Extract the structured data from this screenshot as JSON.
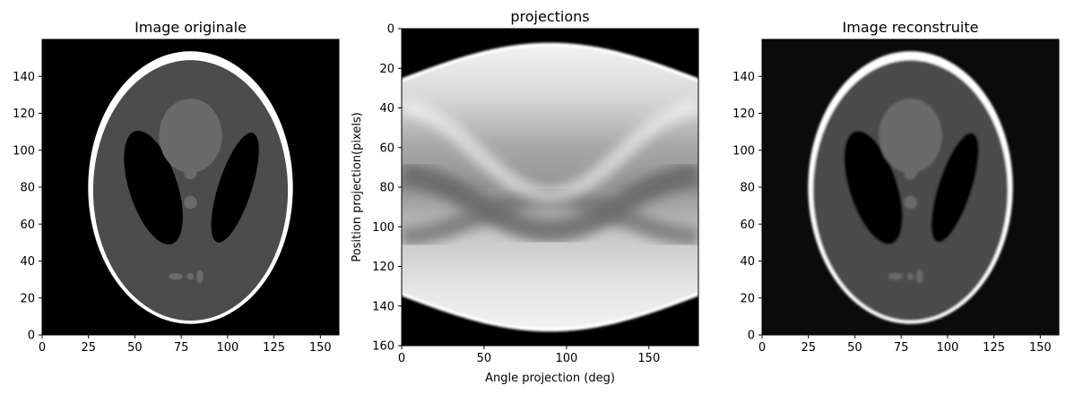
{
  "chart_data": [
    {
      "type": "heatmap",
      "title": "Image originale",
      "xlabel": "",
      "ylabel": "",
      "xlim": [
        0,
        160
      ],
      "ylim": [
        160,
        0
      ],
      "xticks": [
        0,
        25,
        50,
        75,
        100,
        125,
        150
      ],
      "yticks": [
        0,
        20,
        40,
        60,
        80,
        100,
        120,
        140
      ],
      "colormap": "gray",
      "content": "shepp-logan phantom",
      "background": "#000000"
    },
    {
      "type": "heatmap",
      "title": "projections",
      "xlabel": "Angle projection (deg)",
      "ylabel": "Position projection(pixels)",
      "xlim": [
        0,
        180
      ],
      "ylim": [
        0,
        160
      ],
      "xticks": [
        0,
        50,
        100,
        150
      ],
      "yticks": [
        0,
        20,
        40,
        60,
        80,
        100,
        120,
        140,
        160
      ],
      "colormap": "gray",
      "content": "sinogram",
      "sinogram_bounds": {
        "top": [
          [
            0,
            134
          ],
          [
            90,
            152
          ],
          [
            180,
            134
          ]
        ],
        "bottom": [
          [
            0,
            26
          ],
          [
            90,
            8
          ],
          [
            180,
            26
          ]
        ]
      }
    },
    {
      "type": "heatmap",
      "title": "Image reconstruite",
      "xlabel": "",
      "ylabel": "",
      "xlim": [
        0,
        160
      ],
      "ylim": [
        160,
        0
      ],
      "xticks": [
        0,
        25,
        50,
        75,
        100,
        125,
        150
      ],
      "yticks": [
        0,
        20,
        40,
        60,
        80,
        100,
        120,
        140
      ],
      "colormap": "gray",
      "content": "reconstructed phantom",
      "background": "#0b0b0b"
    }
  ]
}
